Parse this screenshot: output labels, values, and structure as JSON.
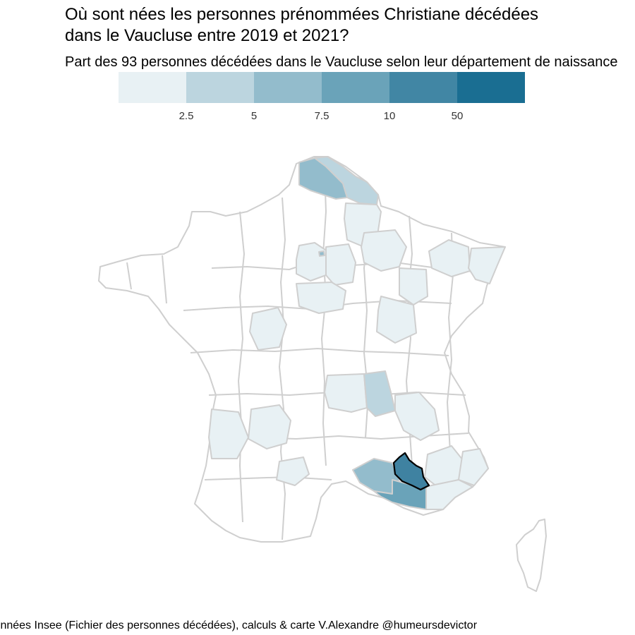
{
  "title": "Où sont nées les personnes prénommées Christiane décédées dans le Vaucluse entre 2019 et 2021?",
  "title_line1": "Où sont nées les personnes prénommées Christiane décédées",
  "title_line2": "dans le Vaucluse entre 2019 et 2021?",
  "subtitle": "Part des 93 personnes décédées dans le Vaucluse selon leur département de naissance",
  "legend": {
    "colors": [
      "#e8f1f4",
      "#bcd5df",
      "#93bccc",
      "#6aa3b9",
      "#4186a4",
      "#1a6e92"
    ],
    "labels": [
      "2.5",
      "5",
      "7.5",
      "10",
      "50"
    ]
  },
  "map": {
    "highlighted_department": "Vaucluse",
    "highlight_color": "#3f82a1",
    "border_color": "#cfcfcf"
  },
  "caption": "Données Insee (Fichier des personnes décédées), calculs & carte V.Alexandre @humeursdevictor"
}
